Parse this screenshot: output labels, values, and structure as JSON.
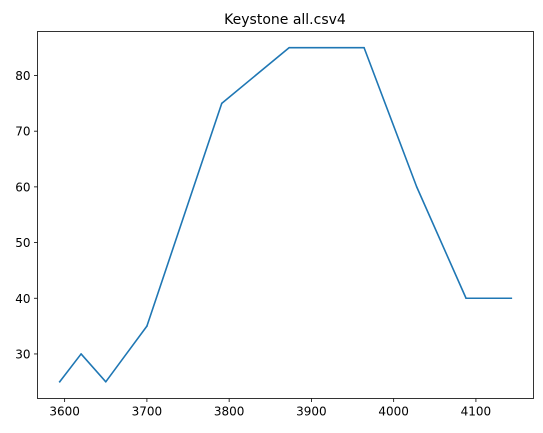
{
  "chart_data": {
    "type": "line",
    "title": "Keystone all.csv4",
    "xlabel": "",
    "ylabel": "",
    "xlim": [
      3567,
      4170
    ],
    "ylim": [
      22.0,
      87.9
    ],
    "x_ticks": [
      3600,
      3700,
      3800,
      3900,
      4000,
      4100
    ],
    "y_ticks": [
      30,
      40,
      50,
      60,
      70,
      80
    ],
    "grid": false,
    "series": [
      {
        "color": "#1f77b4",
        "x": [
          3594,
          3620,
          3650,
          3700,
          3791,
          3873,
          3964,
          4028,
          4088,
          4143
        ],
        "y": [
          25,
          30,
          25,
          35,
          75,
          85,
          85,
          60,
          40,
          40
        ]
      }
    ]
  }
}
